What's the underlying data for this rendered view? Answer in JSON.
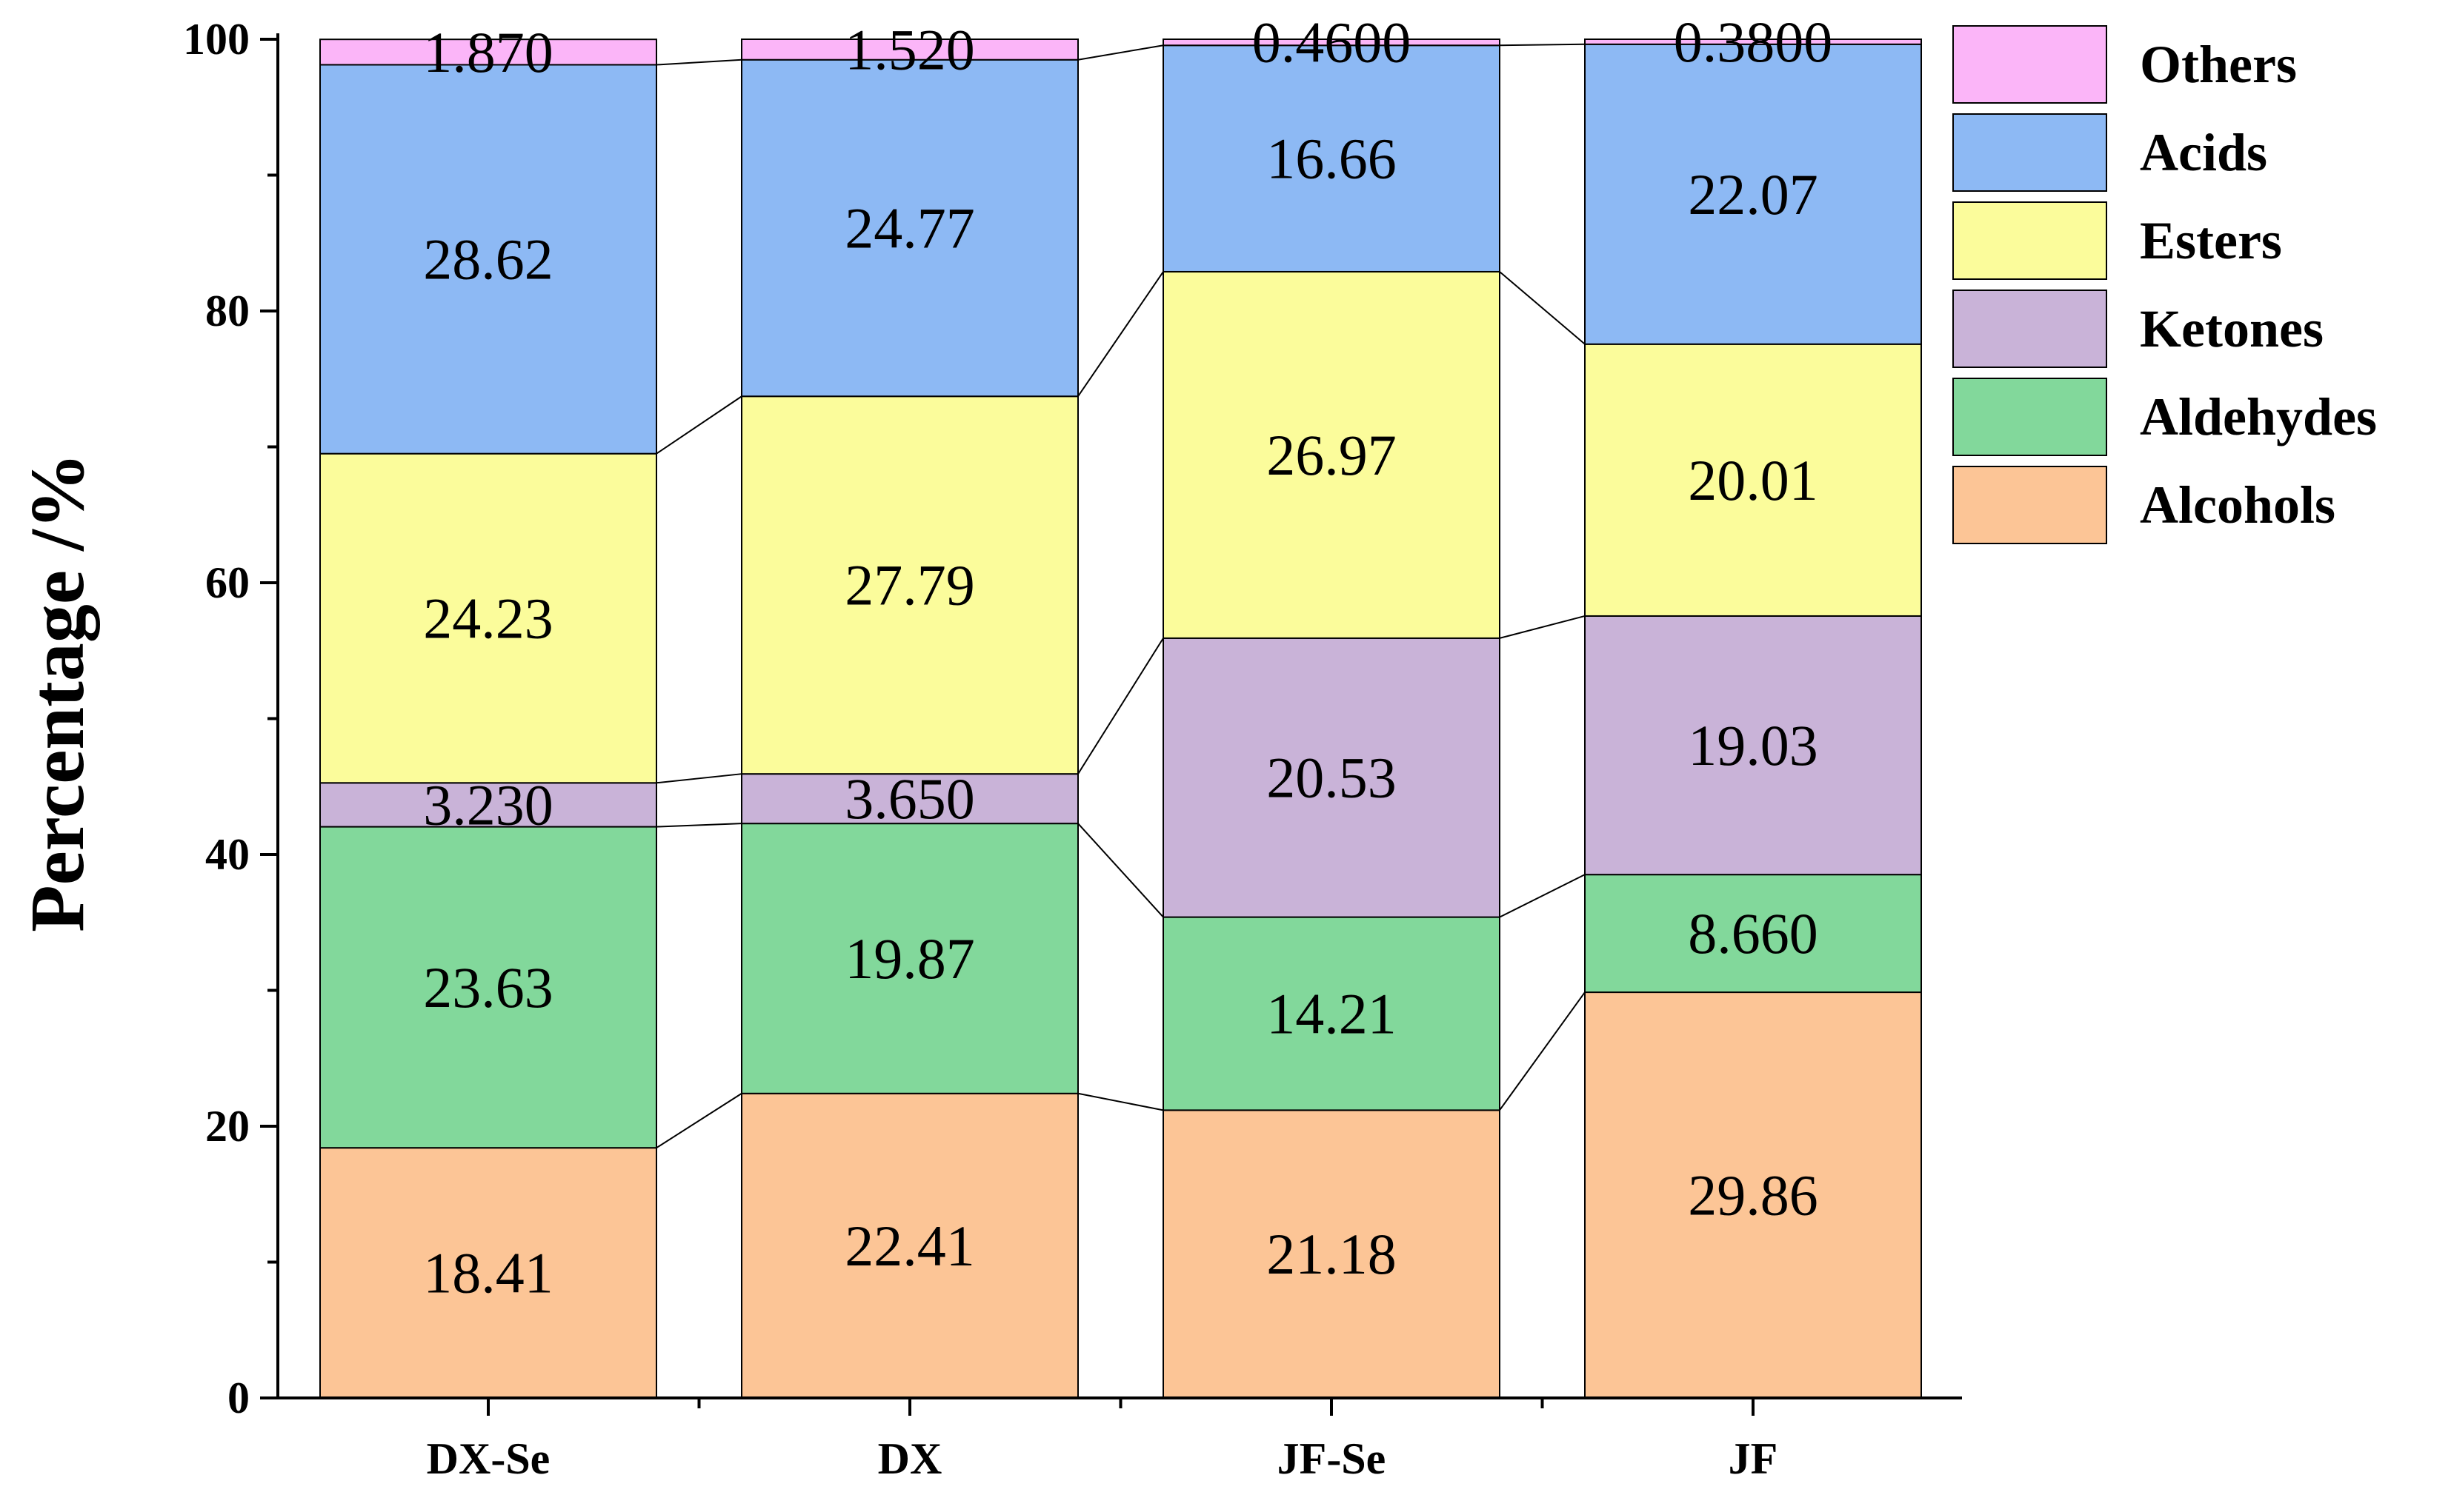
{
  "chart_data": {
    "type": "bar",
    "stacked": true,
    "stacked_percent": true,
    "title": "",
    "xlabel": "",
    "ylabel": "Percentage /%",
    "ylim": [
      0,
      100
    ],
    "yticks": [
      "0",
      "20",
      "40",
      "60",
      "80",
      "100"
    ],
    "categories": [
      "DX-Se",
      "DX",
      "JF-Se",
      "JF"
    ],
    "legend_position": "right",
    "connector_lines": true,
    "series": [
      {
        "name": "Alcohols",
        "color": "#FCC596",
        "values": [
          18.41,
          22.41,
          21.18,
          29.86
        ],
        "labels": [
          "18.41",
          "22.41",
          "21.18",
          "29.86"
        ]
      },
      {
        "name": "Aldehydes",
        "color": "#82D89B",
        "values": [
          23.63,
          19.87,
          14.21,
          8.66
        ],
        "labels": [
          "23.63",
          "19.87",
          "14.21",
          "8.660"
        ]
      },
      {
        "name": "Ketones",
        "color": "#C9B3D8",
        "values": [
          3.23,
          3.65,
          20.53,
          19.03
        ],
        "labels": [
          "3.230",
          "3.650",
          "20.53",
          "19.03"
        ]
      },
      {
        "name": "Esters",
        "color": "#FBFC9B",
        "values": [
          24.23,
          27.79,
          26.97,
          20.01
        ],
        "labels": [
          "24.23",
          "27.79",
          "26.97",
          "20.01"
        ]
      },
      {
        "name": "Acids",
        "color": "#8DB9F4",
        "values": [
          28.62,
          24.77,
          16.66,
          22.07
        ],
        "labels": [
          "28.62",
          "24.77",
          "16.66",
          "22.07"
        ]
      },
      {
        "name": "Others",
        "color": "#FBB5F8",
        "values": [
          1.87,
          1.52,
          0.46,
          0.38
        ],
        "labels": [
          "1.870",
          "1.520",
          "0.4600",
          "0.3800"
        ]
      }
    ]
  }
}
